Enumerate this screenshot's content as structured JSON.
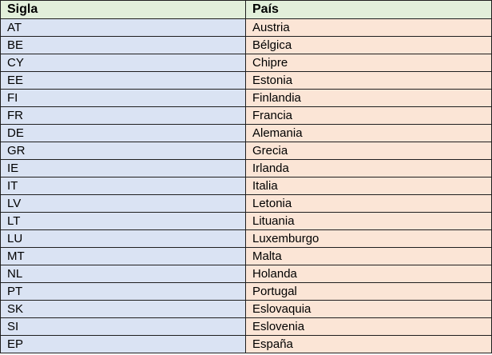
{
  "table": {
    "headers": [
      "Sigla",
      "País"
    ],
    "rows": [
      [
        "AT",
        "Austria"
      ],
      [
        "BE",
        "Bélgica"
      ],
      [
        "CY",
        "Chipre"
      ],
      [
        "EE",
        "Estonia"
      ],
      [
        "FI",
        "Finlandia"
      ],
      [
        "FR",
        "Francia"
      ],
      [
        "DE",
        "Alemania"
      ],
      [
        "GR",
        "Grecia"
      ],
      [
        "IE",
        "Irlanda"
      ],
      [
        "IT",
        "Italia"
      ],
      [
        "LV",
        "Letonia"
      ],
      [
        "LT",
        "Lituania"
      ],
      [
        "LU",
        "Luxemburgo"
      ],
      [
        "MT",
        "Malta"
      ],
      [
        "NL",
        "Holanda"
      ],
      [
        "PT",
        "Portugal"
      ],
      [
        "SK",
        "Eslovaquia"
      ],
      [
        "SI",
        "Eslovenia"
      ],
      [
        "EP",
        "España"
      ]
    ]
  },
  "colors": {
    "header_bg": "#e2efda",
    "sigla_bg": "#dae3f3",
    "pais_bg": "#fbe5d6",
    "border": "#1f1f1f"
  }
}
